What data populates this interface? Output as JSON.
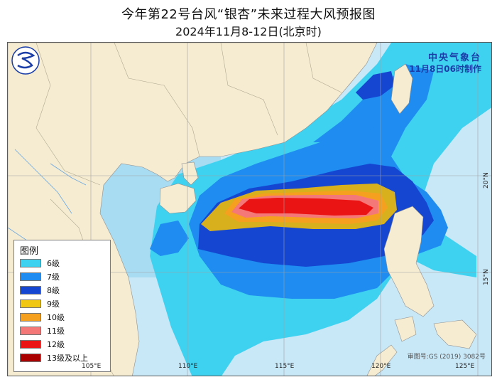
{
  "header": {
    "title": "今年第22号台风“银杏”未来过程大风预报图",
    "subtitle": "2024年11月8-12日(北京时)"
  },
  "agency": {
    "name": "中央气象台",
    "issue_time": "11月8日06时制作"
  },
  "legend": {
    "title": "图例",
    "items": [
      {
        "label": "6级",
        "color": "#3fd2f0"
      },
      {
        "label": "7级",
        "color": "#1e8cf0"
      },
      {
        "label": "8级",
        "color": "#1446d2"
      },
      {
        "label": "9级",
        "color": "#f0c814"
      },
      {
        "label": "10级",
        "color": "#f5a01e"
      },
      {
        "label": "11级",
        "color": "#f57878"
      },
      {
        "label": "12级",
        "color": "#eb1414"
      },
      {
        "label": "13级及以上",
        "color": "#aa0000"
      }
    ]
  },
  "axes": {
    "longitude_labels": [
      "105°E",
      "110°E",
      "115°E",
      "120°E",
      "125°E"
    ],
    "latitude_labels": [
      "20°N",
      "15°N"
    ]
  },
  "approval_number": "审图号:GS (2019) 3082号",
  "colors": {
    "land": "#f5ecd2",
    "sea_base": "#c8e8f8",
    "grid": "#a0a0a0"
  }
}
